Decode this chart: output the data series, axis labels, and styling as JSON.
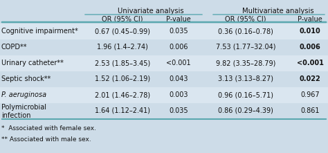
{
  "rows": [
    [
      "Cognitive impairment*",
      "0.67 (0.45–0.99)",
      "0.035",
      "0.36 (0.16–0.78)",
      "0.010"
    ],
    [
      "COPD**",
      "1.96 (1.4–2.74)",
      "0.006",
      "7.53 (1.77–32.04)",
      "0.006"
    ],
    [
      "Urinary catheter**",
      "2.53 (1.85–3.45)",
      "<0.001",
      "9.82 (3.35–28.79)",
      "<0.001"
    ],
    [
      "Septic shock**",
      "1.52 (1.06–2.19)",
      "0.043",
      "3.13 (3.13–8.27)",
      "0.022"
    ],
    [
      "P. aeruginosa",
      "2.01 (1.46–2.78)",
      "0.003",
      "0.96 (0.16–5.71)",
      "0.967"
    ],
    [
      "Polymicrobial\ninfection",
      "1.64 (1.12–2.41)",
      "0.035",
      "0.86 (0.29–4.39)",
      "0.861"
    ]
  ],
  "bold_multi_pvals": [
    "0.010",
    "0.006",
    "<0.001",
    "0.022"
  ],
  "italic_rows": [
    4
  ],
  "footnotes": [
    "*  Associated with female sex.",
    "** Associated with male sex."
  ],
  "bg_color": "#cddce8",
  "row_alt_color": "#dae6f0",
  "teal": "#5ba8b0",
  "text_color": "#111111",
  "white_bg": "#f0f4f8",
  "header1_labels": [
    "Univariate analysis",
    "Multivariate analysis"
  ],
  "subheader_labels": [
    "OR (95% CI)",
    "P-value",
    "OR (95% CI)",
    "P-value"
  ]
}
